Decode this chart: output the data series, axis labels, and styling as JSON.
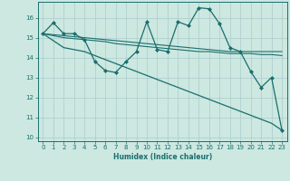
{
  "xlabel": "Humidex (Indice chaleur)",
  "bg_color": "#cce8e0",
  "grid_color": "#aacccc",
  "line_color": "#1a6e6e",
  "xlim": [
    -0.5,
    23.5
  ],
  "ylim": [
    9.8,
    16.8
  ],
  "xticks": [
    0,
    1,
    2,
    3,
    4,
    5,
    6,
    7,
    8,
    9,
    10,
    11,
    12,
    13,
    14,
    15,
    16,
    17,
    18,
    19,
    20,
    21,
    22,
    23
  ],
  "yticks": [
    10,
    11,
    12,
    13,
    14,
    15,
    16
  ],
  "series": [
    {
      "x": [
        0,
        1,
        2,
        3,
        4,
        5,
        6,
        7,
        8,
        9,
        10,
        11,
        12,
        13,
        14,
        15,
        16,
        17,
        18,
        19,
        20,
        21,
        22,
        23
      ],
      "y": [
        15.2,
        15.75,
        15.2,
        15.2,
        14.9,
        13.8,
        13.35,
        13.25,
        13.8,
        14.3,
        15.8,
        14.4,
        14.3,
        15.8,
        15.6,
        16.5,
        16.45,
        15.7,
        14.5,
        14.3,
        13.3,
        12.5,
        13.0,
        10.35
      ],
      "marker": "D",
      "markersize": 2.0,
      "linewidth": 0.9
    },
    {
      "x": [
        0,
        1,
        2,
        3,
        4,
        5,
        6,
        7,
        8,
        9,
        10,
        11,
        12,
        13,
        14,
        15,
        16,
        17,
        18,
        19,
        20,
        21,
        22,
        23
      ],
      "y": [
        15.2,
        15.15,
        15.1,
        15.05,
        15.0,
        14.95,
        14.9,
        14.85,
        14.8,
        14.75,
        14.7,
        14.65,
        14.6,
        14.55,
        14.5,
        14.45,
        14.4,
        14.35,
        14.3,
        14.3,
        14.3,
        14.3,
        14.3,
        14.3
      ],
      "marker": null,
      "markersize": 0,
      "linewidth": 0.8
    },
    {
      "x": [
        0,
        1,
        2,
        3,
        4,
        5,
        6,
        7,
        8,
        9,
        10,
        11,
        12,
        13,
        14,
        15,
        16,
        17,
        18,
        19,
        20,
        21,
        22,
        23
      ],
      "y": [
        15.2,
        15.1,
        15.0,
        14.95,
        14.9,
        14.85,
        14.8,
        14.7,
        14.65,
        14.6,
        14.55,
        14.5,
        14.45,
        14.4,
        14.35,
        14.3,
        14.3,
        14.25,
        14.2,
        14.2,
        14.2,
        14.15,
        14.15,
        14.1
      ],
      "marker": null,
      "markersize": 0,
      "linewidth": 0.8
    },
    {
      "x": [
        0,
        1,
        2,
        3,
        4,
        5,
        6,
        7,
        8,
        9,
        10,
        11,
        12,
        13,
        14,
        15,
        16,
        17,
        18,
        19,
        20,
        21,
        22,
        23
      ],
      "y": [
        15.2,
        14.85,
        14.5,
        14.4,
        14.3,
        14.1,
        13.9,
        13.7,
        13.5,
        13.3,
        13.1,
        12.9,
        12.7,
        12.5,
        12.3,
        12.1,
        11.9,
        11.7,
        11.5,
        11.3,
        11.1,
        10.9,
        10.7,
        10.35
      ],
      "marker": null,
      "markersize": 0,
      "linewidth": 0.9
    }
  ]
}
